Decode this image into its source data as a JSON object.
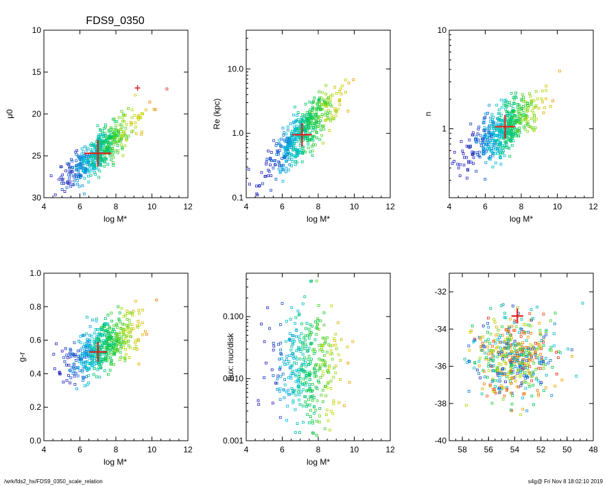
{
  "figure_title": "FDS9_0350",
  "footer": {
    "left": "/wrk/fds2_hs/FDS9_0350_scale_relation",
    "right": "s4g@  Fri Nov  8 18:02:10 2019"
  },
  "colors": {
    "marker": "#e01e1e",
    "frame": "#000000"
  },
  "chart_data": [
    {
      "type": "scatter",
      "title": "FDS9_0350",
      "xlabel": "log M*",
      "ylabel": "μ0",
      "xlim": [
        4,
        12
      ],
      "ylim": [
        30,
        10
      ],
      "y_scale": "linear",
      "y_inverted": true,
      "xticks": [
        4,
        6,
        8,
        10,
        12
      ],
      "xtick_labels": [
        "4",
        "6",
        "8",
        "10",
        "12"
      ],
      "yticks": [
        10,
        15,
        20,
        25,
        30
      ],
      "ytick_labels": [
        "10",
        "15",
        "20",
        "25",
        "30"
      ],
      "cloud": {
        "x_mean": 7.1,
        "x_sd": 1.0,
        "slope": -1.8,
        "intercept": 37.2,
        "scatter": 1.1,
        "n": 520,
        "seed": 11
      },
      "galaxy": {
        "x": 7.0,
        "y": 24.7,
        "xerr": 0.75,
        "yerr": 1.6
      },
      "highlight": {
        "x": 9.2,
        "y": 16.9
      }
    },
    {
      "type": "scatter",
      "xlabel": "log M*",
      "ylabel": "Re (kpc)",
      "xlim": [
        4,
        12
      ],
      "ylim": [
        0.1,
        40
      ],
      "y_scale": "log",
      "xticks": [
        4,
        6,
        8,
        10,
        12
      ],
      "xtick_labels": [
        "4",
        "6",
        "8",
        "10",
        "12"
      ],
      "yticks": [
        0.1,
        1,
        10
      ],
      "ytick_labels": [
        "0.1",
        "1.0",
        "10.0"
      ],
      "cloud": {
        "x_mean": 7.1,
        "x_sd": 1.0,
        "slope": 0.28,
        "intercept": -2.0,
        "scatter": 0.17,
        "n": 520,
        "seed": 23
      },
      "galaxy": {
        "x": 7.1,
        "y": 0.95,
        "xerr": 0.55,
        "yerr_dex": 0.18
      }
    },
    {
      "type": "scatter",
      "xlabel": "log M*",
      "ylabel": "n",
      "xlim": [
        4,
        12
      ],
      "ylim": [
        0.2,
        10
      ],
      "y_scale": "log",
      "xticks": [
        4,
        6,
        8,
        10,
        12
      ],
      "xtick_labels": [
        "4",
        "6",
        "8",
        "10",
        "12"
      ],
      "yticks": [
        1,
        10
      ],
      "ytick_labels": [
        "1",
        "10"
      ],
      "cloud": {
        "x_mean": 7.1,
        "x_sd": 1.0,
        "slope": 0.12,
        "intercept": -0.85,
        "scatter": 0.13,
        "n": 520,
        "seed": 37
      },
      "galaxy": {
        "x": 7.1,
        "y": 1.05,
        "xerr": 0.55,
        "yerr_dex": 0.12
      }
    },
    {
      "type": "scatter",
      "xlabel": "log M*",
      "ylabel": "g-r",
      "xlim": [
        4,
        12
      ],
      "ylim": [
        0.0,
        1.0
      ],
      "y_scale": "linear",
      "xticks": [
        4,
        6,
        8,
        10,
        12
      ],
      "xtick_labels": [
        "4",
        "6",
        "8",
        "10",
        "12"
      ],
      "yticks": [
        0.0,
        0.2,
        0.4,
        0.6,
        0.8,
        1.0
      ],
      "ytick_labels": [
        "0.0",
        "0.2",
        "0.4",
        "0.6",
        "0.8",
        "1.0"
      ],
      "cloud": {
        "x_mean": 7.2,
        "x_sd": 1.0,
        "slope": 0.055,
        "intercept": 0.16,
        "scatter": 0.075,
        "n": 520,
        "seed": 41
      },
      "galaxy": {
        "x": 7.0,
        "y": 0.53,
        "xerr": 0.5,
        "yerr": 0.06
      }
    },
    {
      "type": "scatter",
      "xlabel": "log M*",
      "ylabel": "flux: nuc/disk",
      "xlim": [
        4,
        12
      ],
      "ylim": [
        0.001,
        0.5
      ],
      "y_scale": "log",
      "xticks": [
        4,
        6,
        8,
        10,
        12
      ],
      "xtick_labels": [
        "4",
        "6",
        "8",
        "10",
        "12"
      ],
      "yticks": [
        0.001,
        0.01,
        0.1
      ],
      "ytick_labels": [
        "0.001",
        "0.010",
        "0.100"
      ],
      "cloud": {
        "x_mean": 7.3,
        "x_sd": 1.0,
        "slope": 0.0,
        "intercept": -1.8,
        "scatter": 0.5,
        "n": 380,
        "seed": 53
      }
    },
    {
      "type": "scatter",
      "xlabel": "",
      "ylabel": "",
      "xlim": [
        59,
        48
      ],
      "ylim": [
        -40,
        -31
      ],
      "y_scale": "linear",
      "x_inverted": true,
      "xticks": [
        58,
        56,
        54,
        52,
        50,
        48
      ],
      "xtick_labels": [
        "58",
        "56",
        "54",
        "52",
        "50",
        "48"
      ],
      "yticks": [
        -40,
        -38,
        -36,
        -34,
        -32
      ],
      "ytick_labels": [
        "-40",
        "-38",
        "-36",
        "-34",
        "-32"
      ],
      "cloud": {
        "x_mean": 54.0,
        "x_sd": 1.5,
        "slope": 0.0,
        "intercept": -35.6,
        "scatter": 1.05,
        "n": 520,
        "seed": 67
      },
      "galaxy": {
        "x": 53.8,
        "y": -33.3,
        "xerr": 0.45,
        "yerr": 0.4
      }
    }
  ]
}
